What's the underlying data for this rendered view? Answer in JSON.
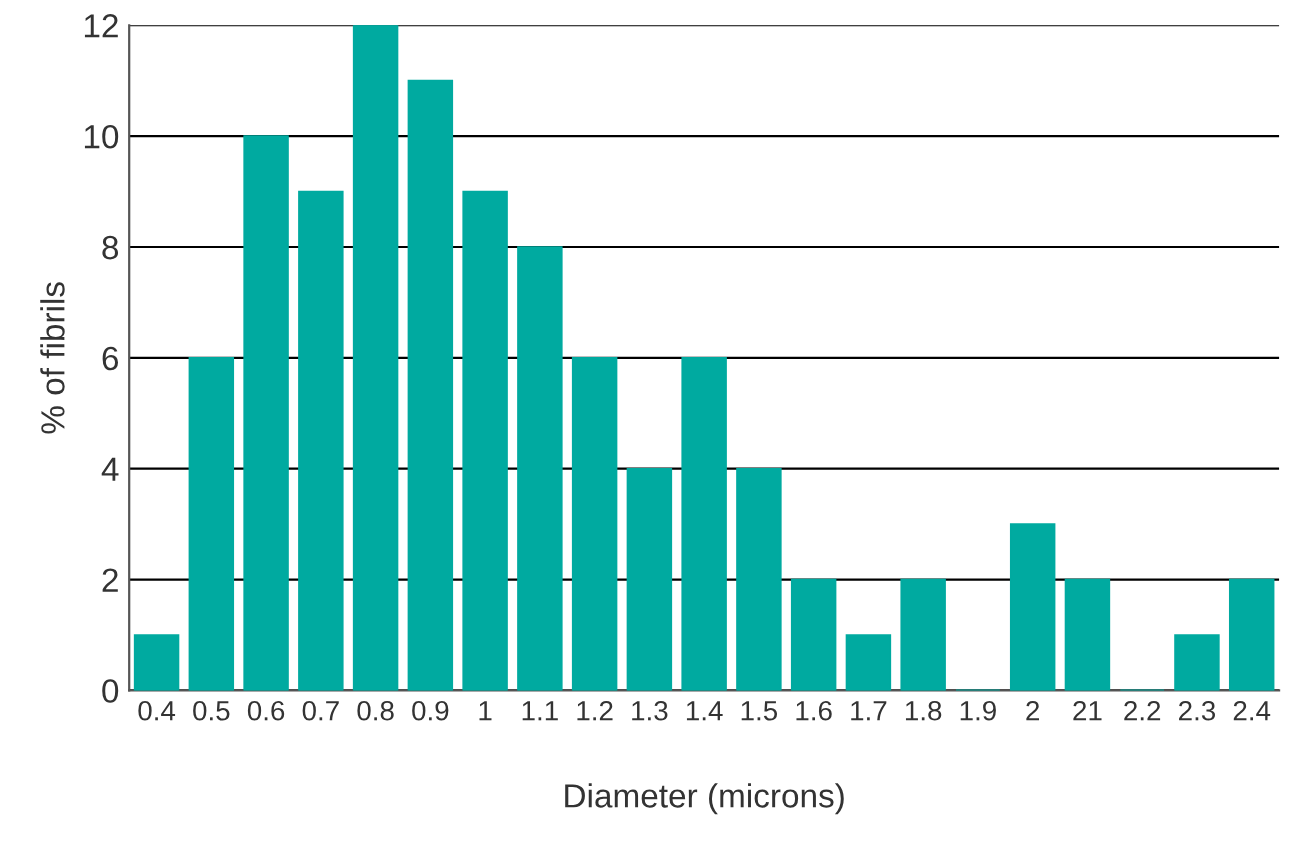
{
  "chart_data": {
    "type": "bar",
    "xlabel": "Diameter (microns)",
    "ylabel": "% of fibrils",
    "categories": [
      "0.4",
      "0.5",
      "0.6",
      "0.7",
      "0.8",
      "0.9",
      "1",
      "1.1",
      "1.2",
      "1.3",
      "1.4",
      "1.5",
      "1.6",
      "1.7",
      "1.8",
      "1.9",
      "2",
      "21",
      "2.2",
      "2.3",
      "2.4"
    ],
    "values": [
      1,
      6,
      10,
      9,
      12,
      11,
      9,
      8,
      6,
      4,
      6,
      4,
      2,
      1,
      2,
      0,
      3,
      2,
      0,
      1,
      2
    ],
    "color": "#00aaa0",
    "ylim": [
      0,
      12
    ],
    "yticks": [
      0,
      2,
      4,
      6,
      8,
      10,
      12
    ],
    "grid": "y"
  }
}
